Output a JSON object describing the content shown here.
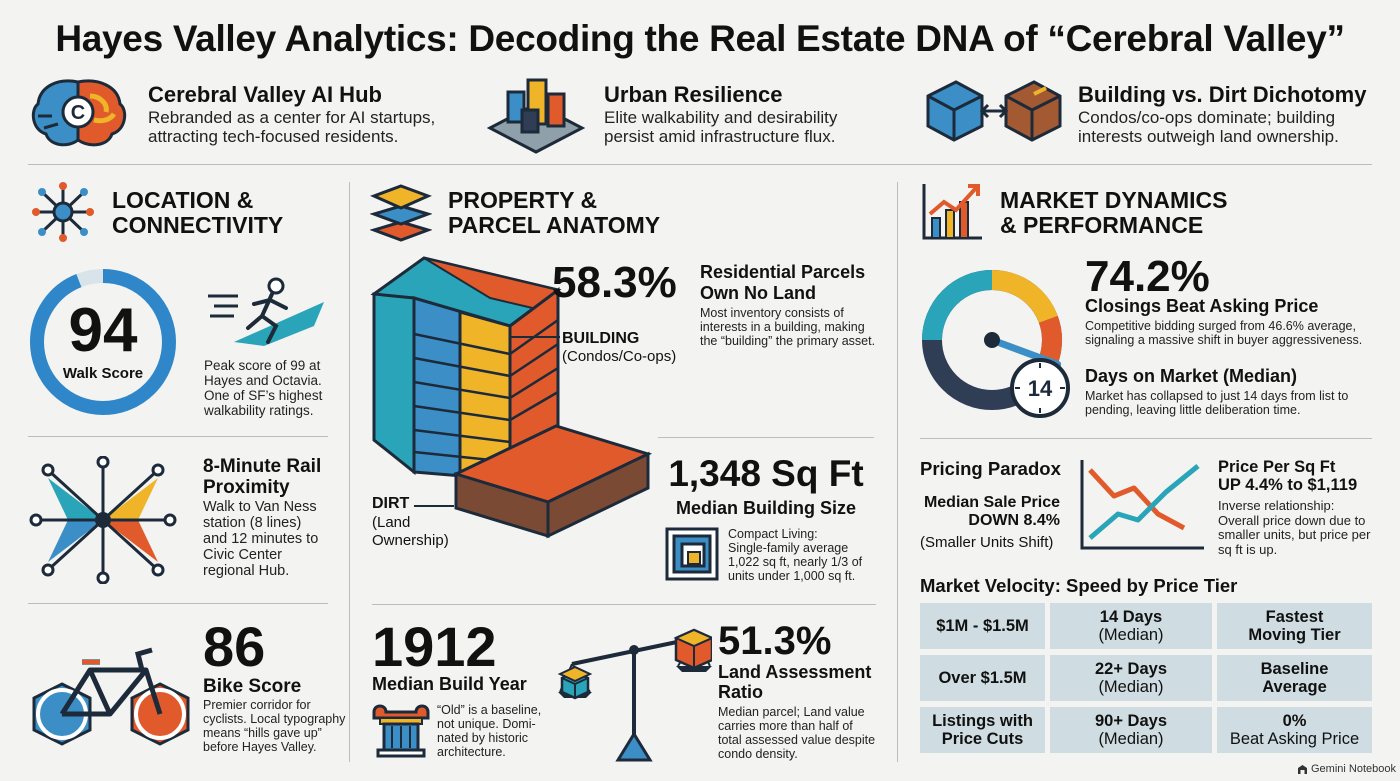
{
  "title": "Hayes Valley Analytics: Decoding the Real Estate DNA of “Cerebral Valley”",
  "highlights": [
    {
      "title": "Cerebral Valley AI Hub",
      "line1": "Rebranded as a center for AI startups,",
      "line2": "attracting tech-focused residents.",
      "icon": "brain-icon"
    },
    {
      "title": "Urban Resilience",
      "line1": "Elite walkability and desirability",
      "line2": "persist amid infrastructure flux.",
      "icon": "city-blocks-icon"
    },
    {
      "title": "Building vs. Dirt Dichotomy",
      "line1": "Condos/co-ops dominate; building",
      "line2": "interests outweigh land ownership.",
      "icon": "cube-arrows-icon"
    }
  ],
  "location": {
    "title1": "LOCATION &",
    "title2": "CONNECTIVITY",
    "walk": {
      "score": "94",
      "label": "Walk Score",
      "ring_fraction": 0.94,
      "desc": [
        "Peak score of 99 at",
        "Hayes and Octavia.",
        "One of SF’s highest",
        "walkability ratings."
      ]
    },
    "rail": {
      "title1": "8-Minute Rail",
      "title2": "Proximity",
      "desc": [
        "Walk to Van Ness",
        "station (8 lines)",
        "and 12 minutes to",
        "Civic Center",
        "regional Hub."
      ]
    },
    "bike": {
      "score": "86",
      "label": "Bike Score",
      "desc": [
        "Premier corridor for",
        "cyclists. Local typography",
        "means “hills gave up”",
        "before Hayes Valley."
      ]
    }
  },
  "property": {
    "title1": "PROPERTY &",
    "title2": "PARCEL ANATOMY",
    "parcels": {
      "value": "58.3%",
      "title1": "Residential Parcels",
      "title2": "Own No Land",
      "desc": [
        "Most inventory consists of",
        "interests in a building, making",
        "the “building” the primary asset."
      ]
    },
    "building_label": "BUILDING",
    "building_sub": "(Condos/Co-ops)",
    "dirt_label": "DIRT",
    "dirt_sub1": "(Land",
    "dirt_sub2": "Ownership)",
    "size": {
      "value": "1,348 Sq Ft",
      "label": "Median Building Size",
      "desc": [
        "Compact Living:",
        "Single-family average",
        "1,022 sq ft, nearly 1/3 of",
        "units under 1,000 sq ft."
      ]
    },
    "year": {
      "value": "1912",
      "label": "Median Build Year",
      "desc": [
        "“Old” is a baseline,",
        "not unique. Domi-",
        "nated by historic",
        "architecture."
      ]
    },
    "land": {
      "value": "51.3%",
      "label1": "Land Assessment",
      "label2": "Ratio",
      "desc": [
        "Median parcel; Land value",
        "carries more than half of",
        "total assessed value despite",
        "condo density."
      ]
    }
  },
  "market": {
    "title1": "MARKET DYNAMICS",
    "title2": "& PERFORMANCE",
    "closings": {
      "value": "74.2%",
      "label": "Closings Beat Asking Price",
      "gauge_fraction": 0.742,
      "desc": [
        "Competitive bidding surged from 46.6% average,",
        "signaling a massive shift in buyer aggressiveness."
      ]
    },
    "dom": {
      "value": "14",
      "label": "Days on Market (Median)",
      "desc": [
        "Market has collapsed to just 14 days from list to",
        "pending, leaving little deliberation time."
      ]
    },
    "paradox": {
      "title": "Pricing Paradox",
      "sale1": "Median Sale Price",
      "sale2": "DOWN 8.4%",
      "sale3": "(Smaller Units Shift)",
      "ppsf1": "Price Per Sq Ft",
      "ppsf2": "UP 4.4% to $1,119",
      "desc": [
        "Inverse relationship:",
        "Overall price down due to",
        "smaller units, but price per",
        "sq ft is up."
      ]
    },
    "velocity": {
      "title": "Market Velocity: Speed by Price Tier",
      "rows": [
        {
          "tier": [
            "$1M - $1.5M"
          ],
          "days": "14 Days",
          "sub": "(Median)",
          "note1": "Fastest",
          "note2": "Moving Tier",
          "note_bold": true
        },
        {
          "tier": [
            "Over $1.5M"
          ],
          "days": "22+ Days",
          "sub": "(Median)",
          "note1": "Baseline",
          "note2": "Average",
          "note_bold": true
        },
        {
          "tier": [
            "Listings with",
            "Price Cuts"
          ],
          "days": "90+ Days",
          "sub": "(Median)",
          "note1": "0%",
          "note2": "Beat Asking Price",
          "note_bold": false
        }
      ]
    }
  },
  "watermark": "Gemini Notebook",
  "colors": {
    "blue": "#3b8fc6",
    "orange": "#e05a2b",
    "yellow": "#f0b429",
    "teal": "#2aa4b8",
    "navy": "#2f3d55",
    "brown": "#7a4a35",
    "cell": "#cfdde2"
  }
}
